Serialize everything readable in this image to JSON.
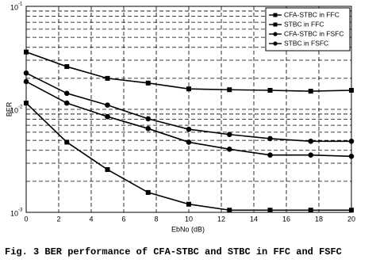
{
  "chart_data": {
    "type": "line",
    "xlabel": "EbNo (dB)",
    "ylabel": "BER",
    "caption": "Fig. 3 BER performance of CFA-STBC and STBC in FFC and FSFC",
    "x": [
      0,
      2.5,
      5,
      7.5,
      10,
      12.5,
      15,
      17.5,
      20
    ],
    "series": [
      {
        "name": "CFA-STBC in FFC",
        "color": "#000000",
        "marker": "square",
        "values": [
          0.0115,
          0.0048,
          0.0026,
          0.00156,
          0.0012,
          0.00105,
          0.00105,
          0.00105,
          0.00105
        ]
      },
      {
        "name": "STBC in FFC",
        "color": "#000000",
        "marker": "square",
        "values": [
          0.036,
          0.026,
          0.02,
          0.018,
          0.0158,
          0.0155,
          0.0153,
          0.015,
          0.0153
        ]
      },
      {
        "name": "CFA-STBC in FSFC",
        "color": "#000000",
        "marker": "circle",
        "values": [
          0.0186,
          0.0115,
          0.0085,
          0.0065,
          0.0048,
          0.0041,
          0.0036,
          0.0036,
          0.0035
        ]
      },
      {
        "name": "STBC in FSFC",
        "color": "#000000",
        "marker": "circle",
        "values": [
          0.0225,
          0.0143,
          0.011,
          0.0081,
          0.0064,
          0.0057,
          0.0052,
          0.0049,
          0.0049
        ]
      }
    ],
    "xlim": [
      0,
      20
    ],
    "xticks": [
      0,
      2,
      4,
      6,
      8,
      10,
      12,
      14,
      16,
      18,
      20
    ],
    "ylim": [
      0.001,
      0.1
    ],
    "ylog": true,
    "yticks": [
      {
        "value": 0.001,
        "label": "10",
        "exponent": "-3"
      },
      {
        "value": 0.01,
        "label": "10",
        "exponent": "-2"
      },
      {
        "value": 0.1,
        "label": "10",
        "exponent": "-1"
      }
    ],
    "yminor": [
      0.002,
      0.003,
      0.004,
      0.005,
      0.006,
      0.007,
      0.008,
      0.009,
      0.02,
      0.03,
      0.04,
      0.05,
      0.06,
      0.07,
      0.08,
      0.09
    ],
    "grid": true,
    "legend": "upper right"
  }
}
